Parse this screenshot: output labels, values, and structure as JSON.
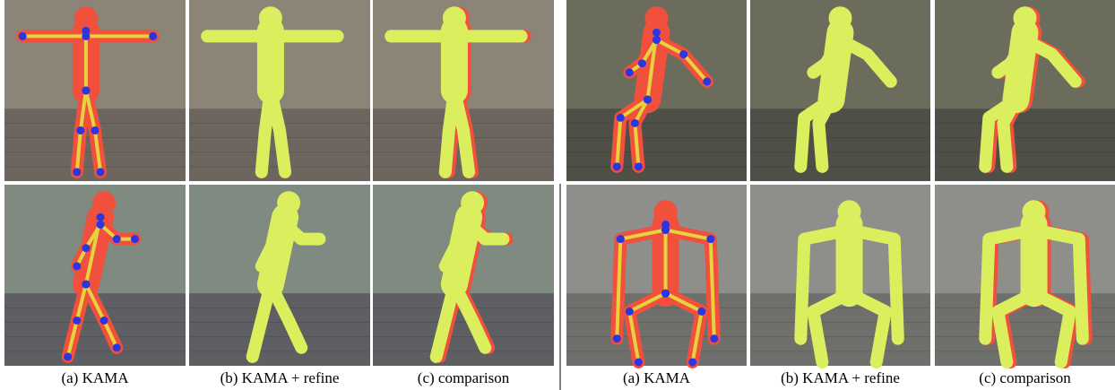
{
  "panels": [
    {
      "captions": [
        "(a) KAMA",
        "(b) KAMA + refine",
        "(c) comparison"
      ]
    },
    {
      "captions": [
        "(a) KAMA",
        "(b) KAMA + refine",
        "(c) comparison"
      ]
    }
  ]
}
